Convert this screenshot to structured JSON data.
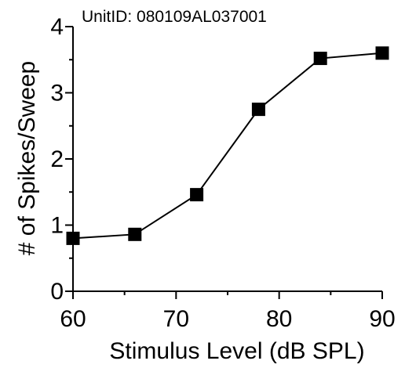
{
  "chart_data": {
    "type": "line",
    "title": "UnitID: 080109AL037001",
    "xlabel": "Stimulus Level (dB SPL)",
    "ylabel": "# of Spikes/Sweep",
    "xlim": [
      60,
      90
    ],
    "ylim": [
      0,
      4
    ],
    "x_ticks": [
      "60",
      "70",
      "80",
      "90"
    ],
    "y_ticks": [
      "0",
      "1",
      "2",
      "3",
      "4"
    ],
    "grid": false,
    "marker": "square",
    "series": [
      {
        "x": [
          60,
          66,
          72,
          78,
          84,
          90
        ],
        "values": [
          0.8,
          0.86,
          1.46,
          2.75,
          3.52,
          3.6
        ]
      }
    ],
    "colors": {
      "line": "#000000",
      "marker": "#000000"
    }
  }
}
